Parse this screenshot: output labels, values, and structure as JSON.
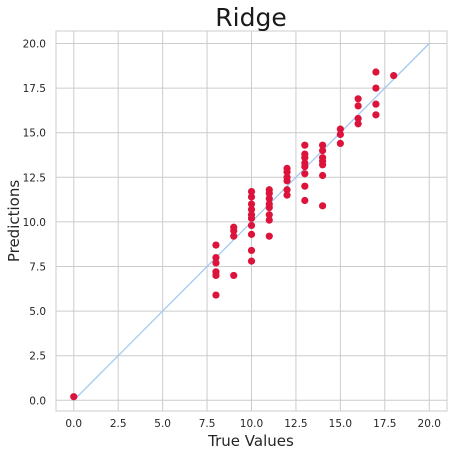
{
  "chart_data": {
    "type": "scatter",
    "title": "Ridge",
    "xlabel": "True Values",
    "ylabel": "Predictions",
    "xlim": [
      -1,
      21
    ],
    "ylim": [
      -0.6,
      20.7
    ],
    "x_ticks": [
      0.0,
      2.5,
      5.0,
      7.5,
      10.0,
      12.5,
      15.0,
      17.5,
      20.0
    ],
    "y_ticks": [
      0.0,
      2.5,
      5.0,
      7.5,
      10.0,
      12.5,
      15.0,
      17.5,
      20.0
    ],
    "x_tick_labels": [
      "0.0",
      "2.5",
      "5.0",
      "7.5",
      "10.0",
      "12.5",
      "15.0",
      "17.5",
      "20.0"
    ],
    "y_tick_labels": [
      "0.0",
      "2.5",
      "5.0",
      "7.5",
      "10.0",
      "12.5",
      "15.0",
      "17.5",
      "20.0"
    ],
    "grid": true,
    "point_color": "#dc143c",
    "line_color": "#a1c9f4",
    "reference_line": {
      "x": [
        0,
        20
      ],
      "y": [
        0,
        20
      ]
    },
    "points": [
      [
        0,
        0.2
      ],
      [
        8,
        8.7
      ],
      [
        8,
        8.0
      ],
      [
        8,
        7.7
      ],
      [
        8,
        7.2
      ],
      [
        8,
        7.0
      ],
      [
        8,
        5.9
      ],
      [
        9,
        9.7
      ],
      [
        9,
        9.5
      ],
      [
        9,
        9.2
      ],
      [
        9,
        7.0
      ],
      [
        10,
        11.7
      ],
      [
        10,
        11.4
      ],
      [
        10,
        11.0
      ],
      [
        10,
        10.7
      ],
      [
        10,
        10.4
      ],
      [
        10,
        10.2
      ],
      [
        10,
        9.8
      ],
      [
        10,
        9.3
      ],
      [
        10,
        8.4
      ],
      [
        10,
        7.8
      ],
      [
        11,
        11.8
      ],
      [
        11,
        11.6
      ],
      [
        11,
        11.3
      ],
      [
        11,
        11.0
      ],
      [
        11,
        10.8
      ],
      [
        11,
        10.4
      ],
      [
        11,
        10.1
      ],
      [
        11,
        9.2
      ],
      [
        12,
        13.0
      ],
      [
        12,
        12.8
      ],
      [
        12,
        12.5
      ],
      [
        12,
        12.3
      ],
      [
        12,
        11.8
      ],
      [
        12,
        11.5
      ],
      [
        13,
        14.3
      ],
      [
        13,
        13.8
      ],
      [
        13,
        13.6
      ],
      [
        13,
        13.3
      ],
      [
        13,
        13.1
      ],
      [
        13,
        12.7
      ],
      [
        13,
        12.0
      ],
      [
        13,
        11.2
      ],
      [
        14,
        14.3
      ],
      [
        14,
        14.0
      ],
      [
        14,
        13.6
      ],
      [
        14,
        13.4
      ],
      [
        14,
        13.2
      ],
      [
        14,
        12.6
      ],
      [
        14,
        10.9
      ],
      [
        15,
        15.2
      ],
      [
        15,
        14.9
      ],
      [
        15,
        14.4
      ],
      [
        16,
        16.9
      ],
      [
        16,
        16.5
      ],
      [
        16,
        15.8
      ],
      [
        16,
        15.5
      ],
      [
        17,
        18.4
      ],
      [
        17,
        17.5
      ],
      [
        17,
        16.6
      ],
      [
        17,
        16.0
      ],
      [
        18,
        18.2
      ]
    ]
  }
}
